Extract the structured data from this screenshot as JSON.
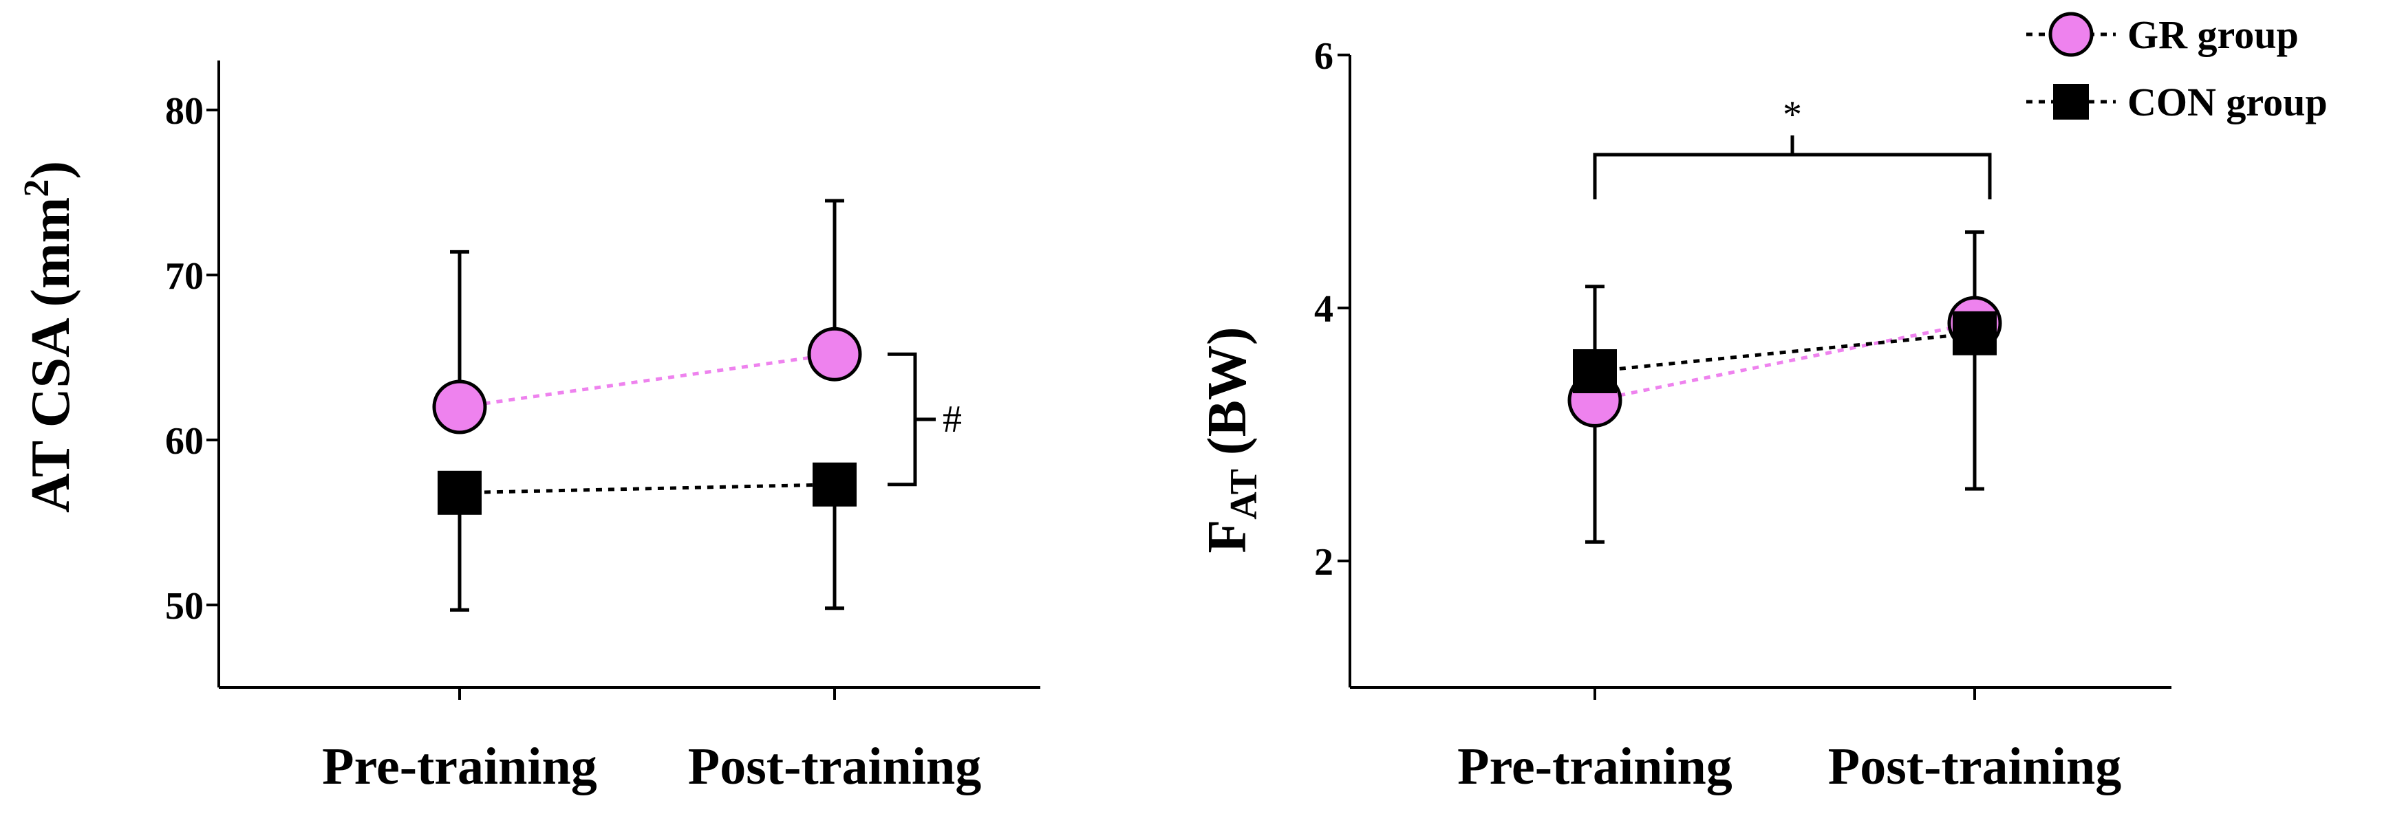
{
  "chart_data": [
    {
      "type": "scatter",
      "title": "",
      "xlabel": "",
      "ylabel": "AT CSA (mm",
      "ylabel_superscript": "2",
      "ylabel_close": ")",
      "categories": [
        "Pre-training",
        "Post-training"
      ],
      "ylim": [
        45,
        83
      ],
      "yticks": [
        "50",
        "60",
        "70",
        "80"
      ],
      "grid": false,
      "series": [
        {
          "name": "GR group",
          "marker": "circle",
          "color": "#ee82ee",
          "line_color": "#ee82ee",
          "values": [
            62.0,
            65.2
          ],
          "errors_upper": [
            71.4,
            74.5
          ],
          "errors_lower": [
            62.0,
            65.2
          ]
        },
        {
          "name": "CON group",
          "marker": "square",
          "color": "#000000",
          "line_color": "#000000",
          "values": [
            56.8,
            57.3
          ],
          "errors_upper": [
            56.8,
            57.3
          ],
          "errors_lower": [
            49.7,
            49.8
          ]
        }
      ],
      "annotations": [
        {
          "text": "#",
          "between": "GR group vs CON group at Post-training"
        }
      ]
    },
    {
      "type": "scatter",
      "title": "",
      "xlabel": "",
      "ylabel_main": "F",
      "ylabel_sub": "AT",
      "ylabel_rest": " (BW)",
      "categories": [
        "Pre-training",
        "Post-training"
      ],
      "ylim": [
        1,
        6
      ],
      "yticks": [
        "2",
        "4",
        "6"
      ],
      "grid": false,
      "series": [
        {
          "name": "GR group",
          "marker": "circle",
          "color": "#ee82ee",
          "line_color": "#ee82ee",
          "values": [
            3.27,
            3.88
          ],
          "errors_upper": [
            3.27,
            3.88
          ],
          "errors_lower": [
            3.27,
            3.88
          ]
        },
        {
          "name": "CON group",
          "marker": "square",
          "color": "#000000",
          "line_color": "#000000",
          "values": [
            3.5,
            3.8
          ],
          "errors_upper": [
            4.17,
            4.6
          ],
          "errors_lower": [
            2.15,
            2.57
          ]
        }
      ],
      "annotations": [
        {
          "text": "*",
          "between": "Pre-training vs Post-training"
        }
      ],
      "legend": {
        "placement": "top-right",
        "entries": [
          "GR group",
          "CON group"
        ]
      }
    }
  ]
}
